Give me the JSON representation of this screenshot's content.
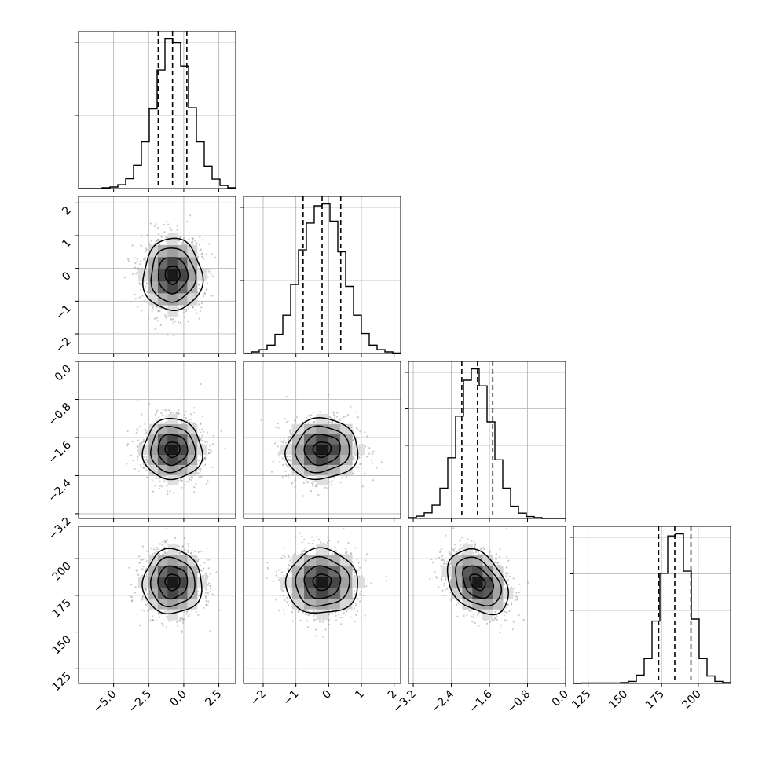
{
  "chart_data": {
    "type": "corner",
    "description_free": true,
    "n_params": 4,
    "show_titles": false,
    "grid": true,
    "quantile_line_style": "dashed",
    "colors": {
      "lines": "#000000",
      "grid": "#b0b0b0",
      "scatter": "#9a9a9a",
      "background": "#ffffff"
    },
    "params": [
      {
        "range": [
          -7.5,
          3.7
        ],
        "ticks": [
          -5.0,
          -2.5,
          0.0,
          2.5
        ],
        "tick_labels": [
          "−5.0",
          "−2.5",
          "0.0",
          "2.5"
        ],
        "mean": -0.8,
        "sd": 1.05,
        "quantiles": [
          -1.82,
          -0.8,
          0.22
        ]
      },
      {
        "range": [
          -2.6,
          2.2
        ],
        "ticks": [
          -2,
          -1,
          0,
          1,
          2
        ],
        "tick_labels": [
          "−2",
          "−1",
          "0",
          "1",
          "2"
        ],
        "mean": -0.2,
        "sd": 0.55,
        "quantiles": [
          -0.78,
          -0.2,
          0.37
        ]
      },
      {
        "range": [
          -3.3,
          0.0
        ],
        "ticks": [
          -3.2,
          -2.4,
          -1.6,
          -0.8,
          0.0
        ],
        "tick_labels": [
          "−3.2",
          "−2.4",
          "−1.6",
          "−0.8",
          "0.0"
        ],
        "mean": -1.85,
        "sd": 0.32,
        "quantiles": [
          -2.18,
          -1.85,
          -1.53
        ]
      },
      {
        "range": [
          115,
          222
        ],
        "ticks": [
          125,
          150,
          175,
          200
        ],
        "tick_labels": [
          "125",
          "150",
          "175",
          "200"
        ],
        "mean": 184,
        "sd": 11,
        "quantiles": [
          173,
          184,
          195
        ]
      }
    ],
    "histograms": [
      {
        "bin_edges": [
          -7.5,
          -6.94,
          -6.38,
          -5.82,
          -5.26,
          -4.7,
          -4.14,
          -3.58,
          -3.02,
          -2.46,
          -1.9,
          -1.34,
          -0.78,
          -0.22,
          0.34,
          0.9,
          1.46,
          2.02,
          2.58,
          3.14,
          3.7
        ],
        "counts": [
          0,
          0,
          0,
          2,
          4,
          10,
          25,
          60,
          120,
          205,
          305,
          385,
          375,
          315,
          208,
          120,
          58,
          24,
          8,
          2
        ]
      },
      {
        "bin_edges": [
          -2.6,
          -2.36,
          -2.12,
          -1.88,
          -1.64,
          -1.4,
          -1.16,
          -0.92,
          -0.68,
          -0.44,
          -0.2,
          0.04,
          0.28,
          0.52,
          0.76,
          1.0,
          1.24,
          1.48,
          1.72,
          1.96,
          2.2
        ],
        "counts": [
          0,
          4,
          10,
          22,
          50,
          100,
          180,
          270,
          340,
          385,
          390,
          345,
          265,
          175,
          100,
          52,
          22,
          10,
          4,
          1
        ]
      },
      {
        "bin_edges": [
          -3.3,
          -3.135,
          -2.97,
          -2.805,
          -2.64,
          -2.475,
          -2.31,
          -2.145,
          -1.98,
          -1.815,
          -1.65,
          -1.485,
          -1.32,
          -1.155,
          -0.99,
          -0.825,
          -0.66,
          -0.495,
          -0.33,
          -0.165,
          0.0
        ],
        "counts": [
          2,
          6,
          15,
          35,
          80,
          160,
          270,
          365,
          395,
          350,
          255,
          155,
          80,
          32,
          14,
          5,
          2,
          0,
          0,
          0
        ]
      },
      {
        "bin_edges": [
          115,
          120.35,
          125.7,
          131.05,
          136.4,
          141.75,
          147.1,
          152.45,
          157.8,
          163.15,
          168.5,
          173.85,
          179.2,
          184.55,
          189.9,
          195.25,
          200.6,
          205.95,
          211.3,
          216.65,
          222
        ],
        "counts": [
          0,
          1,
          1,
          1,
          1,
          1,
          2,
          5,
          20,
          60,
          150,
          265,
          355,
          360,
          270,
          155,
          60,
          18,
          5,
          2
        ]
      }
    ],
    "correlations": {
      "1_0": 0.0,
      "2_0": 0.0,
      "2_1": 0.05,
      "3_0": 0.0,
      "3_1": 0.0,
      "3_2": -0.35
    },
    "tick_label_rotation": 45,
    "xlabel": "",
    "ylabel": "",
    "title": ""
  }
}
